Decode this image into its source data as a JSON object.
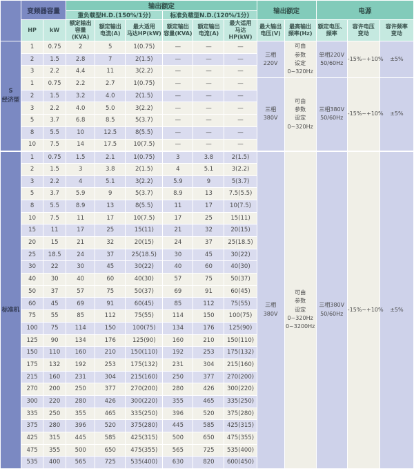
{
  "table": {
    "header": {
      "capacity_group": "变频器容量",
      "output_rating_left": "输出额定",
      "output_rating_right": "输出额定",
      "power_group": "电源",
      "hd_group": "重负载型H.D.(150%/1分)",
      "nd_group": "标准负载型N.D.(120%/1分)",
      "col_hp": "HP",
      "col_kw": "kW",
      "hd": {
        "kva": "额定输出\n容量(KVA)",
        "amp": "额定输出\n电流(A)",
        "motor": "最大适用\n马达HP(kW)"
      },
      "nd": {
        "kva": "额定输出\n容量(KVA)",
        "amp": "额定输出\n电流(A)",
        "motor": "最大适用\n马达HP(kW)"
      },
      "col_voltage": "最大输出\n电压(V)",
      "col_freq": "最高输出\n频率(Hz)",
      "col_rated_vf": "额定电压、\n频率",
      "col_volt_tol": "容许电压\n变动",
      "col_freq_tol": "容许频率\n变动"
    },
    "sections": [
      {
        "label": "S\n经济型",
        "rows": [
          {
            "shade": "c",
            "cells": [
              "1",
              "0.75",
              "2",
              "5",
              "1(0.75)",
              "—",
              "—",
              "—"
            ]
          },
          {
            "shade": "l",
            "cells": [
              "2",
              "1.5",
              "2.8",
              "7",
              "2(1.5)",
              "—",
              "—",
              "—"
            ]
          },
          {
            "shade": "c",
            "cells": [
              "3",
              "2.2",
              "4.4",
              "11",
              "3(2.2)",
              "—",
              "—",
              "—"
            ]
          },
          {
            "shade": "c",
            "cells": [
              "1",
              "0.75",
              "2.2",
              "2.7",
              "1(0.75)",
              "—",
              "—",
              "—"
            ]
          },
          {
            "shade": "l",
            "cells": [
              "2",
              "1.5",
              "3.2",
              "4.0",
              "2(1.5)",
              "—",
              "—",
              "—"
            ]
          },
          {
            "shade": "c",
            "cells": [
              "3",
              "2.2",
              "4.0",
              "5.0",
              "3(2.2)",
              "—",
              "—",
              "—"
            ]
          },
          {
            "shade": "c",
            "cells": [
              "5",
              "3.7",
              "6.8",
              "8.5",
              "5(3.7)",
              "—",
              "—",
              "—"
            ]
          },
          {
            "shade": "l",
            "cells": [
              "8",
              "5.5",
              "10",
              "12.5",
              "8(5.5)",
              "—",
              "—",
              "—"
            ]
          },
          {
            "shade": "c",
            "cells": [
              "10",
              "7.5",
              "14",
              "17.5",
              "10(7.5)",
              "—",
              "—",
              "—"
            ]
          }
        ],
        "merged_groups": [
          {
            "span": 3,
            "voltage": "三相\n220V",
            "freq": "可由\n参数\n设定\n0~320Hz",
            "rated_vf": "单相220V\n50/60Hz",
            "volt_tol": "-15%~+10%",
            "freq_tol": "±5%"
          },
          {
            "span": 6,
            "voltage": "三相\n380V",
            "freq": "可由\n参数\n设定\n0~320Hz",
            "rated_vf": "三相380V\n50/60Hz",
            "volt_tol": "-15%~+10%",
            "freq_tol": "±5%"
          }
        ]
      },
      {
        "label": "标准机",
        "rows": [
          {
            "shade": "l",
            "cells": [
              "1",
              "0.75",
              "1.5",
              "2.1",
              "1(0.75)",
              "3",
              "3.8",
              "2(1.5)"
            ]
          },
          {
            "shade": "c",
            "cells": [
              "2",
              "1.5",
              "3",
              "3.8",
              "2(1.5)",
              "4",
              "5.1",
              "3(2.2)"
            ]
          },
          {
            "shade": "l",
            "cells": [
              "3",
              "2.2",
              "4",
              "5.1",
              "3(2.2)",
              "5.9",
              "9",
              "5(3.7)"
            ]
          },
          {
            "shade": "c",
            "cells": [
              "5",
              "3.7",
              "5.9",
              "9",
              "5(3.7)",
              "8.9",
              "13",
              "7.5(5.5)"
            ]
          },
          {
            "shade": "l",
            "cells": [
              "8",
              "5.5",
              "8.9",
              "13",
              "8(5.5)",
              "11",
              "17",
              "10(7.5)"
            ]
          },
          {
            "shade": "c",
            "cells": [
              "10",
              "7.5",
              "11",
              "17",
              "10(7.5)",
              "17",
              "25",
              "15(11)"
            ]
          },
          {
            "shade": "l",
            "cells": [
              "15",
              "11",
              "17",
              "25",
              "15(11)",
              "21",
              "32",
              "20(15)"
            ]
          },
          {
            "shade": "c",
            "cells": [
              "20",
              "15",
              "21",
              "32",
              "20(15)",
              "24",
              "37",
              "25(18.5)"
            ]
          },
          {
            "shade": "l",
            "cells": [
              "25",
              "18.5",
              "24",
              "37",
              "25(18.5)",
              "30",
              "45",
              "30(22)"
            ]
          },
          {
            "shade": "l",
            "cells": [
              "30",
              "22",
              "30",
              "45",
              "30(22)",
              "40",
              "60",
              "40(30)"
            ]
          },
          {
            "shade": "c",
            "cells": [
              "40",
              "30",
              "40",
              "60",
              "40(30)",
              "57",
              "75",
              "50(37)"
            ]
          },
          {
            "shade": "c",
            "cells": [
              "50",
              "37",
              "57",
              "75",
              "50(37)",
              "69",
              "91",
              "60(45)"
            ]
          },
          {
            "shade": "l",
            "cells": [
              "60",
              "45",
              "69",
              "91",
              "60(45)",
              "85",
              "112",
              "75(55)"
            ]
          },
          {
            "shade": "c",
            "cells": [
              "75",
              "55",
              "85",
              "112",
              "75(55)",
              "114",
              "150",
              "100(75)"
            ]
          },
          {
            "shade": "l",
            "cells": [
              "100",
              "75",
              "114",
              "150",
              "100(75)",
              "134",
              "176",
              "125(90)"
            ]
          },
          {
            "shade": "c",
            "cells": [
              "125",
              "90",
              "134",
              "176",
              "125(90)",
              "160",
              "210",
              "150(110)"
            ]
          },
          {
            "shade": "l",
            "cells": [
              "150",
              "110",
              "160",
              "210",
              "150(110)",
              "192",
              "253",
              "175(132)"
            ]
          },
          {
            "shade": "c",
            "cells": [
              "175",
              "132",
              "192",
              "253",
              "175(132)",
              "231",
              "304",
              "215(160)"
            ]
          },
          {
            "shade": "l",
            "cells": [
              "215",
              "160",
              "231",
              "304",
              "215(160)",
              "250",
              "377",
              "270(200)"
            ]
          },
          {
            "shade": "c",
            "cells": [
              "270",
              "200",
              "250",
              "377",
              "270(200)",
              "280",
              "426",
              "300(220)"
            ]
          },
          {
            "shade": "l",
            "cells": [
              "300",
              "220",
              "280",
              "426",
              "300(220)",
              "355",
              "465",
              "335(250)"
            ]
          },
          {
            "shade": "c",
            "cells": [
              "335",
              "250",
              "355",
              "465",
              "335(250)",
              "396",
              "520",
              "375(280)"
            ]
          },
          {
            "shade": "l",
            "cells": [
              "375",
              "280",
              "396",
              "520",
              "375(280)",
              "445",
              "585",
              "425(315)"
            ]
          },
          {
            "shade": "c",
            "cells": [
              "425",
              "315",
              "445",
              "585",
              "425(315)",
              "500",
              "650",
              "475(355)"
            ]
          },
          {
            "shade": "c",
            "cells": [
              "475",
              "355",
              "500",
              "650",
              "475(355)",
              "565",
              "725",
              "535(400)"
            ]
          },
          {
            "shade": "l",
            "cells": [
              "535",
              "400",
              "565",
              "725",
              "535(400)",
              "630",
              "820",
              "600(450)"
            ]
          }
        ],
        "merged_groups": [
          {
            "span": 26,
            "voltage": "三相\n380V",
            "freq": "可由\n参数\n设定\n0~320Hz\n0~3200Hz",
            "rated_vf": "三相380V\n50/60Hz",
            "volt_tol": "-15%~+10%",
            "freq_tol": "±5%"
          }
        ]
      }
    ]
  },
  "colors": {
    "header_blue": "#7b89c2",
    "header_teal_dark": "#82cbba",
    "header_teal_mid": "#a5dccf",
    "header_teal_light": "#c5e9e0",
    "row_cream": "#f2f1e9",
    "row_lavender": "#dadcef",
    "merged_lavender": "#ced2ea",
    "merged_cream": "#f0efe7",
    "gridline": "#ffffff"
  }
}
